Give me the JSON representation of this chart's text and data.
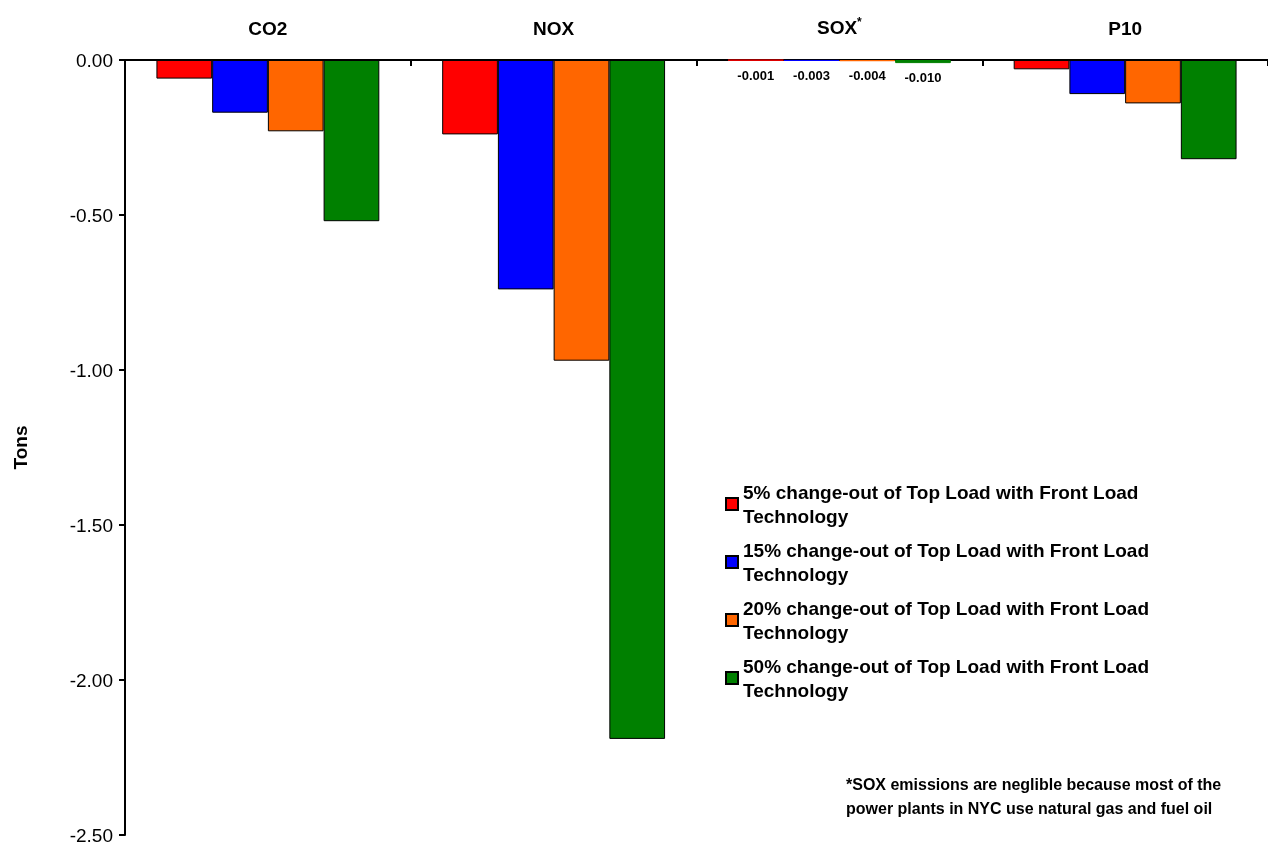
{
  "chart_data": {
    "type": "bar",
    "ylabel": "Tons",
    "categories": [
      "CO2",
      "NOX",
      "SOX$^{*}$",
      "P10"
    ],
    "series": [
      {
        "name": "5% change-out of Top Load with Front Load Technology",
        "color": "#ff0000",
        "values": [
          -0.06,
          -0.24,
          -0.001,
          -0.03
        ],
        "value_labels": [
          null,
          null,
          "-0.001",
          null
        ]
      },
      {
        "name": "15% change-out of Top Load with Front Load Technology",
        "color": "#0000ff",
        "values": [
          -0.17,
          -0.74,
          -0.003,
          -0.11
        ],
        "value_labels": [
          null,
          null,
          "-0.003",
          null
        ]
      },
      {
        "name": "20% change-out of Top Load with Front Load Technology",
        "color": "#ff6600",
        "values": [
          -0.23,
          -0.97,
          -0.004,
          -0.14
        ],
        "value_labels": [
          null,
          null,
          "-0.004",
          null
        ]
      },
      {
        "name": "50% change-out of Top Load with Front Load Technology",
        "color": "#008000",
        "values": [
          -0.52,
          -2.19,
          -0.01,
          -0.32
        ],
        "value_labels": [
          null,
          null,
          "-0.010",
          null
        ]
      }
    ],
    "ylim": [
      -2.5,
      0
    ],
    "yticks": [
      {
        "value": -2.5,
        "label": "-2.50"
      },
      {
        "value": -2,
        "label": "-2.00"
      },
      {
        "value": -1.5,
        "label": "-1.50"
      },
      {
        "value": -1,
        "label": "-1.00"
      },
      {
        "value": -0.5,
        "label": "-0.50"
      },
      {
        "value": 0,
        "label": "0.00"
      }
    ],
    "grid": false,
    "legend": "bottom right",
    "annotations": [
      "*SOX emissions are neglible because most of the power plants in NYC use natural gas and fuel oil"
    ]
  }
}
